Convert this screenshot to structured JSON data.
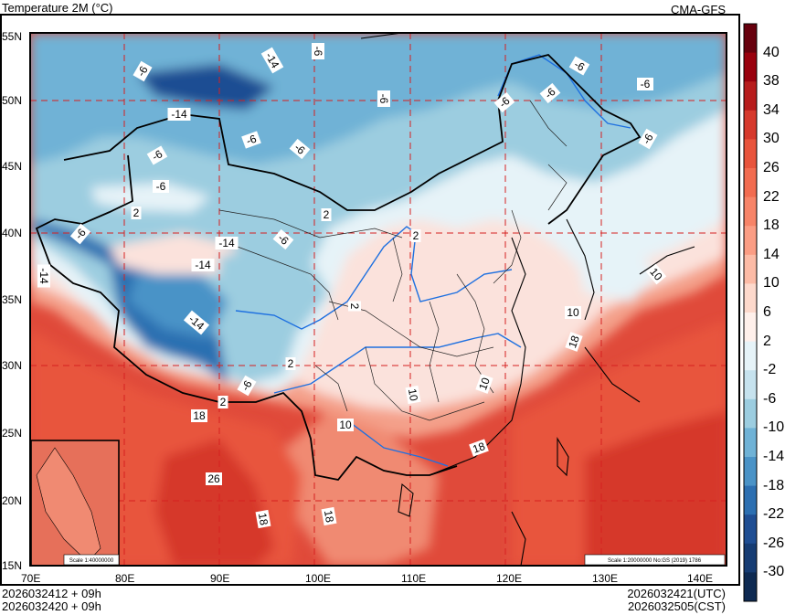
{
  "header": {
    "title": "Temperature  2M (°C)",
    "model": "CMA-GFS"
  },
  "footer": {
    "init_utc": "2026032412 + 09h",
    "init_cst": "2026032420 + 09h",
    "valid_utc": "2026032421(UTC)",
    "valid_cst": "2026032505(CST)"
  },
  "map": {
    "lat_labels": [
      "55N",
      "50N",
      "45N",
      "40N",
      "35N",
      "30N",
      "25N",
      "20N",
      "15N"
    ],
    "lon_labels": [
      "70E",
      "80E",
      "90E",
      "100E",
      "110E",
      "120E",
      "130E",
      "140E"
    ],
    "scale_main": "Scale 1:20000000 No:GS (2019) 1786",
    "scale_inset": "Scale 1:40000000",
    "contour_labels": [
      "-6",
      "-14",
      "-6",
      "-6",
      "-6",
      "-6",
      "-6",
      "-14",
      "-6",
      "-6",
      "-6",
      "-6",
      "2",
      "-6",
      "2",
      "-6",
      "-14",
      "-14",
      "2",
      "-14",
      "2",
      "-6",
      "-6",
      "2",
      "-14",
      "18",
      "26",
      "18",
      "18",
      "18",
      "10",
      "10",
      "10",
      "18",
      "10",
      "10",
      "2",
      "-6"
    ]
  },
  "colorbar": {
    "labels": [
      "40",
      "38",
      "34",
      "30",
      "26",
      "22",
      "18",
      "14",
      "10",
      "6",
      "2",
      "-2",
      "-6",
      "-10",
      "-14",
      "-18",
      "-22",
      "-26",
      "-30"
    ],
    "colors": [
      "#67000d",
      "#99000d",
      "#b71c1c",
      "#d6392c",
      "#e8543c",
      "#f26c50",
      "#f78468",
      "#fb9d84",
      "#fcbba6",
      "#fdd9cc",
      "#fff0eb",
      "#e6f3f8",
      "#c6e2ee",
      "#9ccde0",
      "#6fb2d6",
      "#4a93c7",
      "#2c6fb1",
      "#1f4e93",
      "#163c73",
      "#0e2a52"
    ]
  },
  "colors": {
    "cold_deep": "#123f86",
    "cold": "#4686c3",
    "cool": "#9ccde0",
    "mild": "#fbe2dc",
    "warm": "#f08a72",
    "hot": "#e04a3a",
    "grid": "#d62020",
    "river": "#1e70e0"
  }
}
